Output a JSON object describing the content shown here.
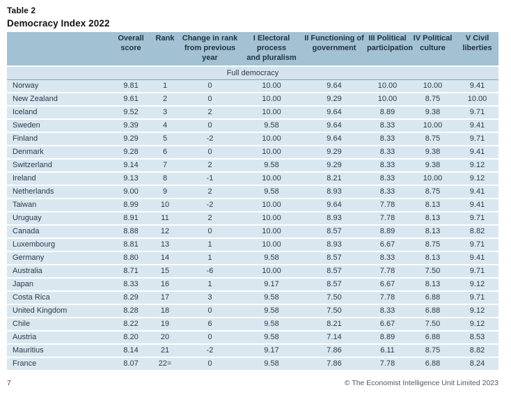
{
  "title": {
    "line1": "Table 2",
    "line2": "Democracy Index 2022"
  },
  "colors": {
    "header_background": "#a2c2d3",
    "section_row_background": "#d4e3ed",
    "data_row_background": "#d9e7f0",
    "row_separator": "#ffffff",
    "section_divider": "#8d9ca6",
    "text": "#2b3a45"
  },
  "table": {
    "section_label": "Full democracy",
    "columns": [
      {
        "key": "country",
        "label": ""
      },
      {
        "key": "overall-score",
        "label": "Overall\nscore"
      },
      {
        "key": "rank",
        "label": "Rank"
      },
      {
        "key": "change-in-rank",
        "label": "Change in rank\nfrom previous year"
      },
      {
        "key": "electoral-process",
        "label": "I Electoral process\nand pluralism"
      },
      {
        "key": "functioning-of-government",
        "label": "II Functioning of\ngovernment"
      },
      {
        "key": "political-participation",
        "label": "III Political\nparticipation"
      },
      {
        "key": "political-culture",
        "label": "IV Political\nculture"
      },
      {
        "key": "civil-liberties",
        "label": "V Civil\nliberties"
      }
    ],
    "rows": [
      [
        "Norway",
        "9.81",
        "1",
        "0",
        "10.00",
        "9.64",
        "10.00",
        "10.00",
        "9.41"
      ],
      [
        "New Zealand",
        "9.61",
        "2",
        "0",
        "10.00",
        "9.29",
        "10.00",
        "8.75",
        "10.00"
      ],
      [
        "Iceland",
        "9.52",
        "3",
        "2",
        "10.00",
        "9.64",
        "8.89",
        "9.38",
        "9.71"
      ],
      [
        "Sweden",
        "9.39",
        "4",
        "0",
        "9.58",
        "9.64",
        "8.33",
        "10.00",
        "9.41"
      ],
      [
        "Finland",
        "9.29",
        "5",
        "-2",
        "10.00",
        "9.64",
        "8.33",
        "8.75",
        "9.71"
      ],
      [
        "Denmark",
        "9.28",
        "6",
        "0",
        "10.00",
        "9.29",
        "8.33",
        "9.38",
        "9.41"
      ],
      [
        "Switzerland",
        "9.14",
        "7",
        "2",
        "9.58",
        "9.29",
        "8.33",
        "9.38",
        "9.12"
      ],
      [
        "Ireland",
        "9.13",
        "8",
        "-1",
        "10.00",
        "8.21",
        "8.33",
        "10.00",
        "9.12"
      ],
      [
        "Netherlands",
        "9.00",
        "9",
        "2",
        "9.58",
        "8.93",
        "8.33",
        "8.75",
        "9.41"
      ],
      [
        "Taiwan",
        "8.99",
        "10",
        "-2",
        "10.00",
        "9.64",
        "7.78",
        "8.13",
        "9.41"
      ],
      [
        "Uruguay",
        "8.91",
        "11",
        "2",
        "10.00",
        "8.93",
        "7.78",
        "8.13",
        "9.71"
      ],
      [
        "Canada",
        "8.88",
        "12",
        "0",
        "10.00",
        "8.57",
        "8.89",
        "8.13",
        "8.82"
      ],
      [
        "Luxembourg",
        "8.81",
        "13",
        "1",
        "10.00",
        "8.93",
        "6.67",
        "8.75",
        "9.71"
      ],
      [
        "Germany",
        "8.80",
        "14",
        "1",
        "9.58",
        "8.57",
        "8.33",
        "8.13",
        "9.41"
      ],
      [
        "Australia",
        "8.71",
        "15",
        "-6",
        "10.00",
        "8.57",
        "7.78",
        "7.50",
        "9.71"
      ],
      [
        "Japan",
        "8.33",
        "16",
        "1",
        "9.17",
        "8.57",
        "6.67",
        "8.13",
        "9.12"
      ],
      [
        "Costa Rica",
        "8.29",
        "17",
        "3",
        "9.58",
        "7.50",
        "7.78",
        "6.88",
        "9.71"
      ],
      [
        "United Kingdom",
        "8.28",
        "18",
        "0",
        "9.58",
        "7.50",
        "8.33",
        "6.88",
        "9.12"
      ],
      [
        "Chile",
        "8.22",
        "19",
        "6",
        "9.58",
        "8.21",
        "6.67",
        "7.50",
        "9.12"
      ],
      [
        "Austria",
        "8.20",
        "20",
        "0",
        "9.58",
        "7.14",
        "8.89",
        "6.88",
        "8.53"
      ],
      [
        "Mauritius",
        "8.14",
        "21",
        "-2",
        "9.17",
        "7.86",
        "6.11",
        "8.75",
        "8.82"
      ],
      [
        "France",
        "8.07",
        "22=",
        "0",
        "9.58",
        "7.86",
        "7.78",
        "6.88",
        "8.24"
      ]
    ]
  },
  "footer": {
    "page_number": "7",
    "copyright": "© The Economist Intelligence Unit Limited 2023"
  }
}
